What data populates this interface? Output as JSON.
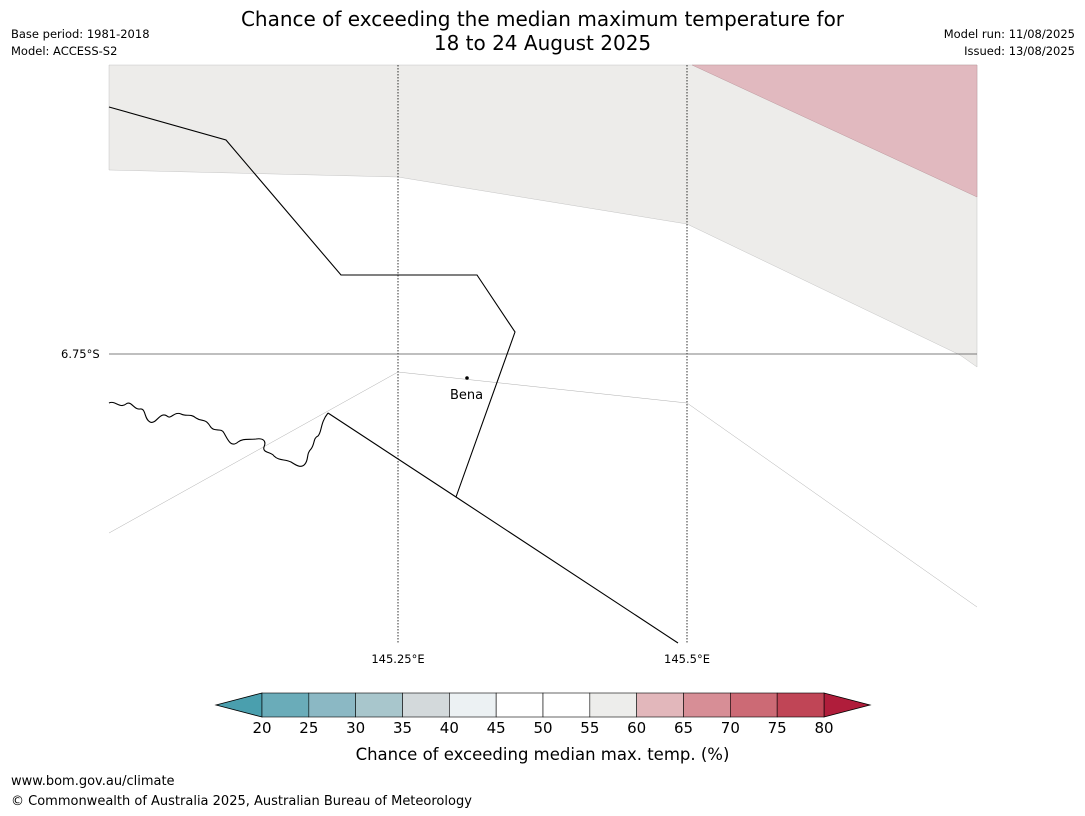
{
  "header": {
    "title_line1": "Chance of exceeding the median maximum temperature for",
    "title_line2": "18 to 24 August 2025",
    "base_period": "Base period: 1981-2018",
    "model": "Model: ACCESS-S2",
    "model_run": "Model run: 11/08/2025",
    "issued": "Issued: 13/08/2025"
  },
  "map": {
    "lat_label": "6.75°S",
    "lon_labels": [
      "145.25°E",
      "145.5°E"
    ],
    "place_name": "Bena",
    "fill_colors": {
      "light_grey": "#edecea",
      "pink": "#e1b9bf"
    }
  },
  "colorbar": {
    "ticks": [
      "20",
      "25",
      "30",
      "35",
      "40",
      "45",
      "50",
      "55",
      "60",
      "65",
      "70",
      "75",
      "80"
    ],
    "low_extend_color": "#4a9fae",
    "high_extend_color": "#b01d3b",
    "bin_colors": [
      "#6aacb9",
      "#8bb8c4",
      "#a8c6cc",
      "#d3d9db",
      "#ecf1f3",
      "#ffffff",
      "#ffffff",
      "#ededeb",
      "#e2b7bb",
      "#d78e96",
      "#cc6a75",
      "#c04556"
    ],
    "label": "Chance of exceeding median max. temp. (%)"
  },
  "footer": {
    "url": "www.bom.gov.au/climate",
    "copyright": "© Commonwealth of Australia 2025, Australian Bureau of Meteorology"
  }
}
